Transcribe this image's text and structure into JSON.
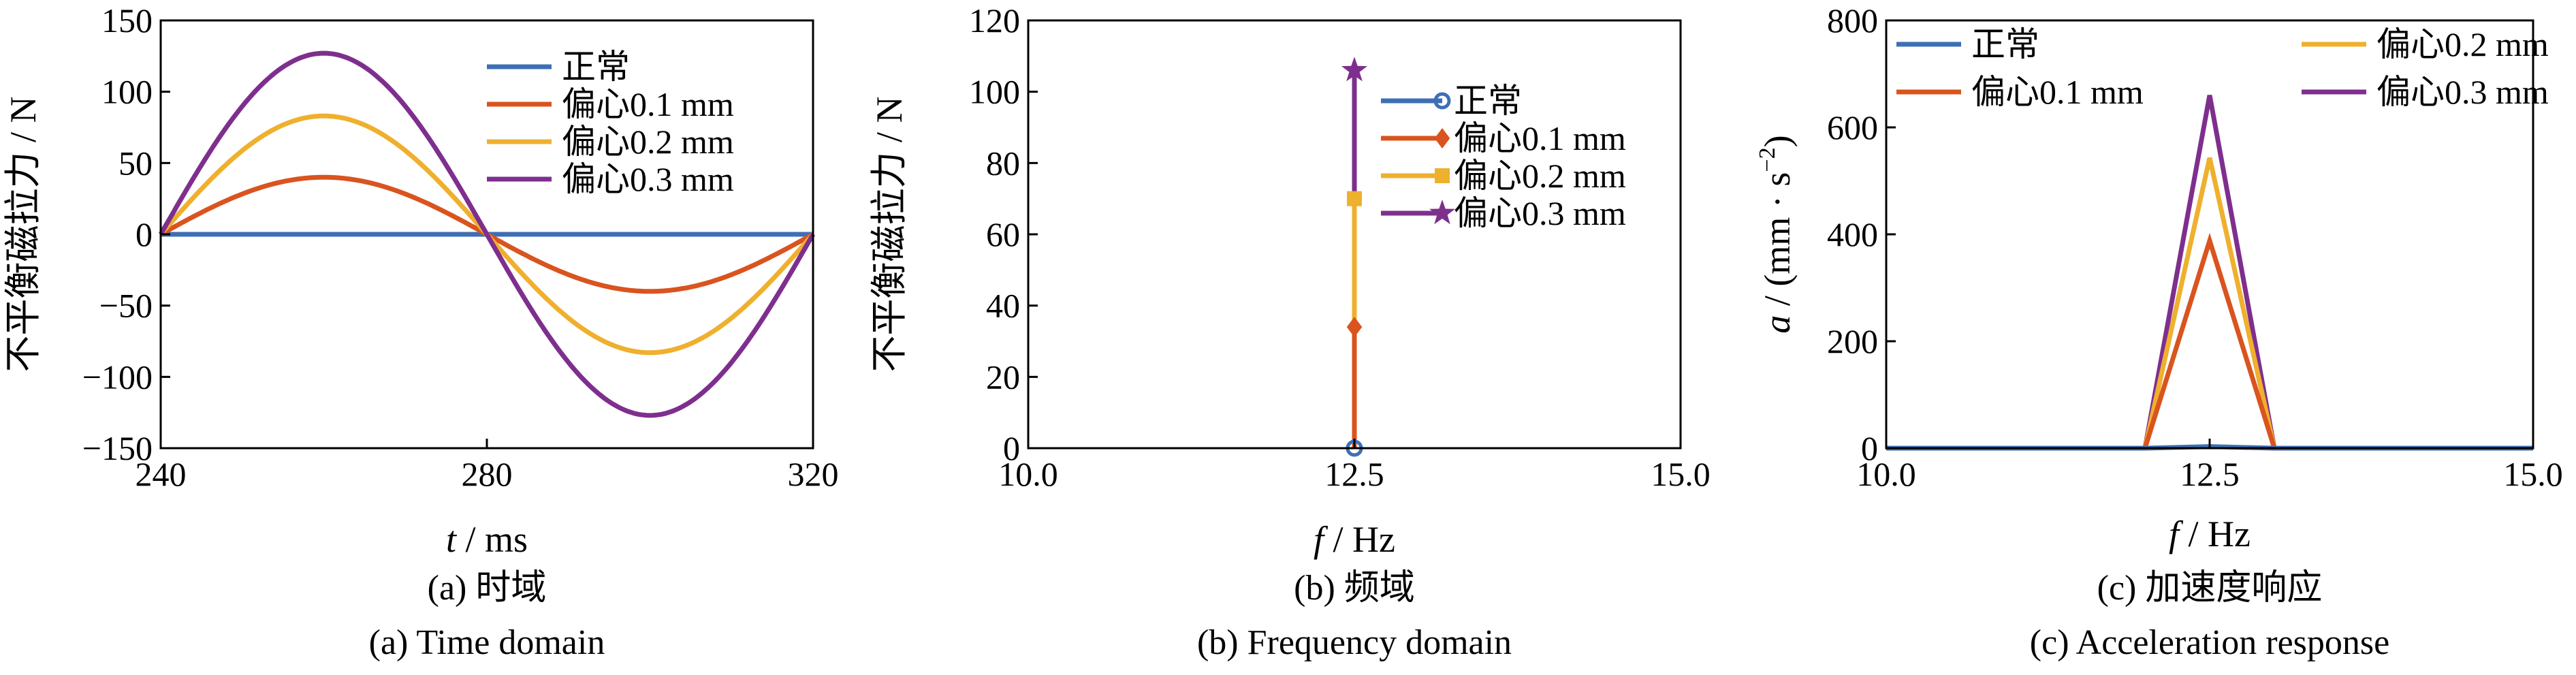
{
  "chart_data": [
    {
      "id": "a",
      "type": "line",
      "xlabel_var": "t",
      "xlabel_unit": " / ms",
      "ylabel": "不平衡磁拉力 / N",
      "xlim": [
        240,
        320
      ],
      "ylim": [
        -150,
        150
      ],
      "xticks": [
        "240",
        "280",
        "320"
      ],
      "yticks": [
        "−150",
        "−100",
        "−50",
        "0",
        "50",
        "100",
        "150"
      ],
      "series": [
        {
          "name": "正常",
          "amplitude": 0
        },
        {
          "name": "偏心0.1 mm",
          "amplitude": 40
        },
        {
          "name": "偏心0.2 mm",
          "amplitude": 83
        },
        {
          "name": "偏心0.3 mm",
          "amplitude": 127
        }
      ],
      "period_ms": 80,
      "legend_position": "top-right",
      "caption_cn": "(a)  时域",
      "caption_en": "(a)  Time domain"
    },
    {
      "id": "b",
      "type": "line",
      "xlabel_var": "f",
      "xlabel_unit": " / Hz",
      "ylabel": "不平衡磁拉力 / N",
      "xlim": [
        10,
        15
      ],
      "ylim": [
        0,
        120
      ],
      "xticks": [
        "10.0",
        "12.5",
        "15.0"
      ],
      "yticks": [
        "0",
        "20",
        "40",
        "60",
        "80",
        "100",
        "120"
      ],
      "x_peak": 12.5,
      "series": [
        {
          "name": "正常",
          "value": 0
        },
        {
          "name": "偏心0.1 mm",
          "value": 34
        },
        {
          "name": "偏心0.2 mm",
          "value": 70
        },
        {
          "name": "偏心0.3 mm",
          "value": 106
        }
      ],
      "legend_position": "top-right",
      "caption_cn": "(b)  频域",
      "caption_en": "(b)  Frequency domain"
    },
    {
      "id": "c",
      "type": "line",
      "xlabel_var": "f",
      "xlabel_unit": " / Hz",
      "ylabel_var": "a",
      "ylabel_unit": " / (mm · s",
      "ylabel_exp": "−2",
      "ylabel_close": ")",
      "xlim": [
        10,
        15
      ],
      "ylim": [
        0,
        800
      ],
      "xticks": [
        "10.0",
        "12.5",
        "15.0"
      ],
      "yticks": [
        "0",
        "200",
        "400",
        "600",
        "800"
      ],
      "series": [
        {
          "name": "正常",
          "x": [
            10,
            12,
            12.5,
            13,
            15
          ],
          "y": [
            0,
            0,
            3,
            0,
            0
          ]
        },
        {
          "name": "偏心0.1 mm",
          "x": [
            10,
            12,
            12.5,
            13,
            15
          ],
          "y": [
            0,
            0,
            388,
            0,
            0
          ]
        },
        {
          "name": "偏心0.2 mm",
          "x": [
            10,
            12,
            12.5,
            13,
            15
          ],
          "y": [
            0,
            0,
            543,
            0,
            0
          ]
        },
        {
          "name": "偏心0.3 mm",
          "x": [
            10,
            12,
            12.5,
            13,
            15
          ],
          "y": [
            0,
            0,
            660,
            0,
            0
          ]
        }
      ],
      "legend_position": "top",
      "caption_cn": "(c)  加速度响应",
      "caption_en": "(c)  Acceleration response"
    }
  ],
  "colors": {
    "normal": "#3d6fb4",
    "ecc01": "#d9541e",
    "ecc02": "#efb02e",
    "ecc03": "#7e2f8e",
    "axis": "#000000"
  },
  "markers": {
    "normal": "circle",
    "ecc01": "diamond",
    "ecc02": "square",
    "ecc03": "star"
  }
}
